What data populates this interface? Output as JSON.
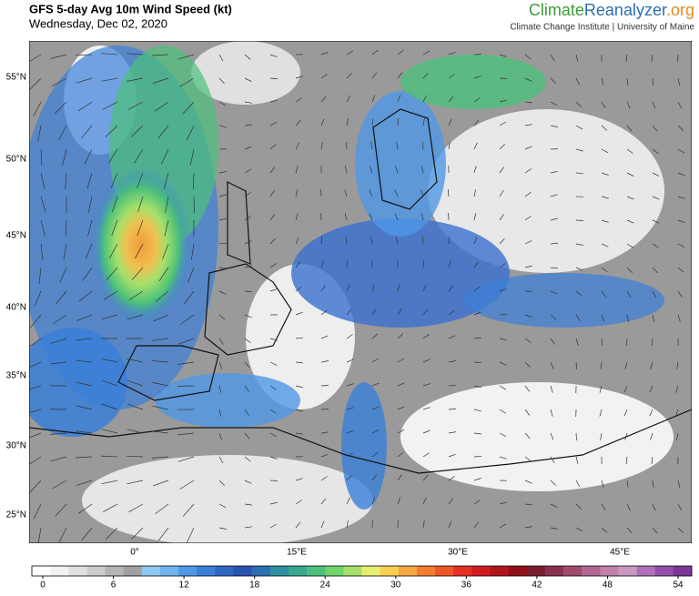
{
  "header": {
    "title": "GFS 5-day Avg 10m Wind Speed (kt)",
    "subtitle": "Wednesday, Dec 02, 2020",
    "logo": {
      "climate": "Climate",
      "reanalyzer": "Reanalyzer",
      "org": ".org"
    },
    "credit": "Climate Change Institute | University of Maine"
  },
  "map": {
    "lat_labels": [
      "55°N",
      "50°N",
      "45°N",
      "40°N",
      "35°N",
      "30°N",
      "25°N"
    ],
    "lon_labels": [
      "0°",
      "15°E",
      "30°E",
      "45°E"
    ]
  },
  "colorbar": {
    "ticks": [
      0,
      6,
      12,
      18,
      24,
      30,
      36,
      42,
      48,
      54
    ],
    "colors": [
      "#ffffff",
      "#f2f2f2",
      "#e0e0e0",
      "#cccccc",
      "#b5b5b5",
      "#a0a0a0",
      "#8cc8f0",
      "#6fb2ee",
      "#4f97e6",
      "#3a7fd8",
      "#2f66c4",
      "#2a52b0",
      "#2c6fb0",
      "#2f8fa0",
      "#38a890",
      "#4cc07a",
      "#6fd46a",
      "#a6e06a",
      "#e6ef6e",
      "#f8d050",
      "#f6a640",
      "#f27c30",
      "#ee5528",
      "#e63024",
      "#d01c20",
      "#b0141c",
      "#8f1018",
      "#7a1c30",
      "#8a3050",
      "#a04a70",
      "#b06890",
      "#c080a8",
      "#c898c0",
      "#b070b8",
      "#9050a8",
      "#7a3896"
    ]
  }
}
